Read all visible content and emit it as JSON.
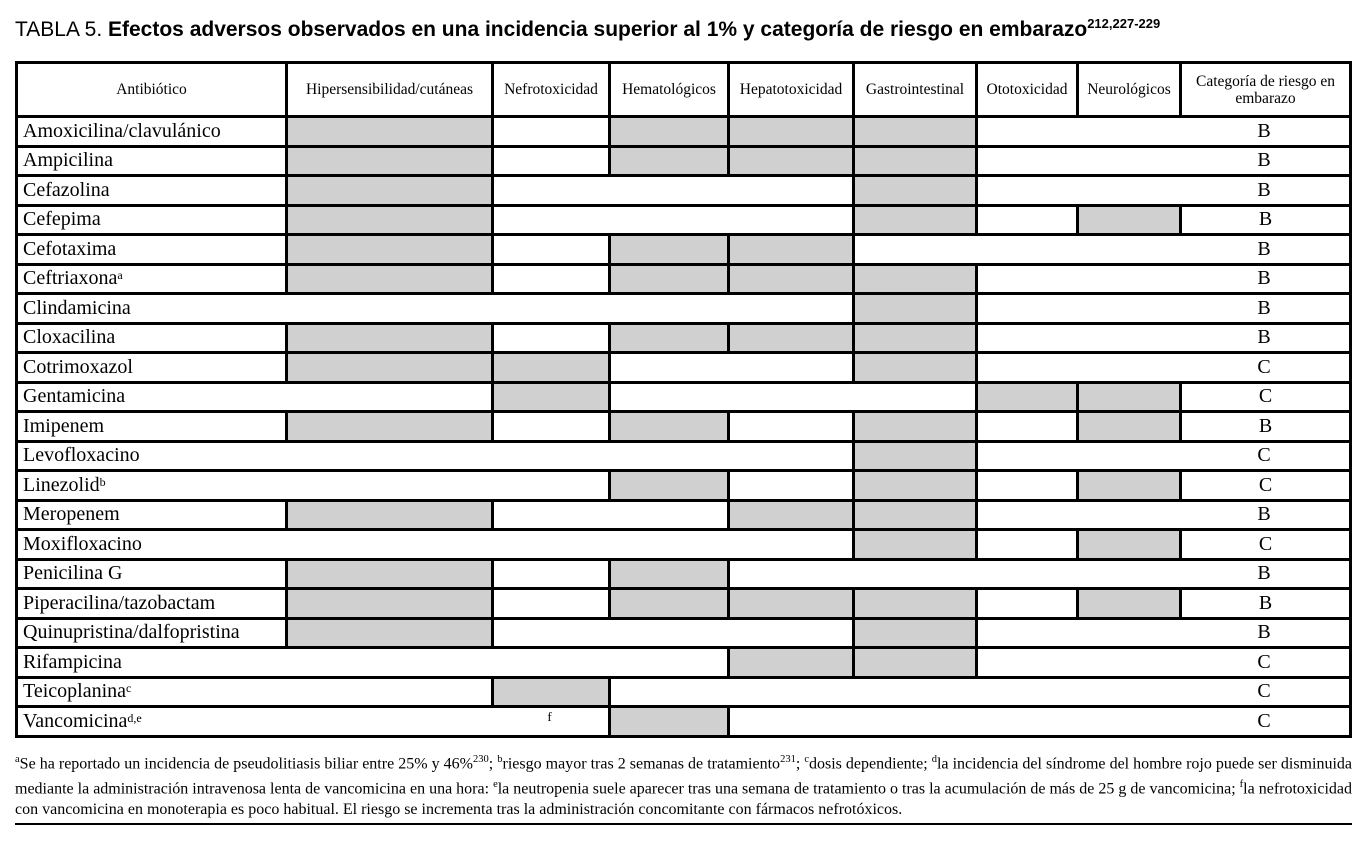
{
  "title": {
    "prefix": "TABLA 5. ",
    "main": "Efectos adversos observados en una incidencia superior al 1% y categoría de riesgo en embarazo",
    "sup": "212,227-229"
  },
  "table": {
    "shade_color": "#d0d0d0",
    "columns": [
      "Antibiótico",
      "Hipersensibilidad/cutáneas",
      "Nefrotoxicidad",
      "Hematológicos",
      "Hepatotoxicidad",
      "Gastrointestinal",
      "Ototoxicidad",
      "Neurológicos",
      "Categoría de riesgo en embarazo"
    ],
    "column_keys": [
      "hipersensibilidad",
      "nefrotoxicidad",
      "hematologicos",
      "hepatotoxicidad",
      "gastrointestinal",
      "ototoxicidad",
      "neurologicos"
    ],
    "rows": [
      {
        "name": "Amoxicilina/clavulánico",
        "sup": "",
        "effects": [
          1,
          0,
          1,
          1,
          1,
          0,
          0
        ],
        "note": null,
        "category": "B"
      },
      {
        "name": "Ampicilina",
        "sup": "",
        "effects": [
          1,
          0,
          1,
          1,
          1,
          0,
          0
        ],
        "note": null,
        "category": "B"
      },
      {
        "name": "Cefazolina",
        "sup": "",
        "effects": [
          1,
          0,
          0,
          0,
          1,
          0,
          0
        ],
        "note": null,
        "category": "B"
      },
      {
        "name": "Cefepima",
        "sup": "",
        "effects": [
          1,
          0,
          0,
          0,
          1,
          0,
          1
        ],
        "note": null,
        "category": "B"
      },
      {
        "name": "Cefotaxima",
        "sup": "",
        "effects": [
          1,
          0,
          1,
          1,
          0,
          0,
          0
        ],
        "note": null,
        "category": "B"
      },
      {
        "name": "Ceftriaxona",
        "sup": "a",
        "effects": [
          1,
          0,
          1,
          1,
          1,
          0,
          0
        ],
        "note": null,
        "category": "B"
      },
      {
        "name": "Clindamicina",
        "sup": "",
        "effects": [
          0,
          0,
          0,
          0,
          1,
          0,
          0
        ],
        "note": null,
        "category": "B"
      },
      {
        "name": "Cloxacilina",
        "sup": "",
        "effects": [
          1,
          0,
          1,
          1,
          1,
          0,
          0
        ],
        "note": null,
        "category": "B"
      },
      {
        "name": "Cotrimoxazol",
        "sup": "",
        "effects": [
          1,
          1,
          0,
          0,
          1,
          0,
          0
        ],
        "note": null,
        "category": "C"
      },
      {
        "name": "Gentamicina",
        "sup": "",
        "effects": [
          0,
          1,
          0,
          0,
          0,
          1,
          1
        ],
        "note": null,
        "category": "C"
      },
      {
        "name": "Imipenem",
        "sup": "",
        "effects": [
          1,
          0,
          1,
          0,
          1,
          0,
          1
        ],
        "note": null,
        "category": "B"
      },
      {
        "name": "Levofloxacino",
        "sup": "",
        "effects": [
          0,
          0,
          0,
          0,
          1,
          0,
          0
        ],
        "note": null,
        "category": "C"
      },
      {
        "name": "Linezolid",
        "sup": "b",
        "effects": [
          0,
          0,
          1,
          0,
          1,
          0,
          1
        ],
        "note": null,
        "category": "C"
      },
      {
        "name": "Meropenem",
        "sup": "",
        "effects": [
          1,
          0,
          0,
          1,
          1,
          0,
          0
        ],
        "note": null,
        "category": "B"
      },
      {
        "name": "Moxifloxacino",
        "sup": "",
        "effects": [
          0,
          0,
          0,
          0,
          1,
          0,
          1
        ],
        "note": null,
        "category": "C"
      },
      {
        "name": "Penicilina G",
        "sup": "",
        "effects": [
          1,
          0,
          1,
          0,
          0,
          0,
          0
        ],
        "note": null,
        "category": "B"
      },
      {
        "name": "Piperacilina/tazobactam",
        "sup": "",
        "effects": [
          1,
          0,
          1,
          1,
          1,
          0,
          1
        ],
        "note": null,
        "category": "B"
      },
      {
        "name": "Quinupristina/dalfopristina",
        "sup": "",
        "effects": [
          1,
          0,
          0,
          0,
          1,
          0,
          0
        ],
        "note": null,
        "category": "B"
      },
      {
        "name": "Rifampicina",
        "sup": "",
        "effects": [
          0,
          0,
          0,
          1,
          1,
          0,
          0
        ],
        "note": null,
        "category": "C"
      },
      {
        "name": "Teicoplanina",
        "sup": "c",
        "effects": [
          0,
          1,
          0,
          0,
          0,
          0,
          0
        ],
        "note": null,
        "category": "C"
      },
      {
        "name": "Vancomicina",
        "sup": "d,e",
        "effects": [
          0,
          0,
          1,
          0,
          0,
          0,
          0
        ],
        "note": {
          "col": 1,
          "label": "f"
        },
        "category": "C"
      }
    ]
  },
  "footnote_segments": [
    {
      "sup": "a"
    },
    {
      "t": "Se ha reportado un incidencia de pseudolitiasis biliar entre 25% y 46%"
    },
    {
      "sup": "230"
    },
    {
      "t": "; "
    },
    {
      "sup": "b"
    },
    {
      "t": "riesgo mayor tras 2 semanas de tratamiento"
    },
    {
      "sup": "231"
    },
    {
      "t": "; "
    },
    {
      "sup": "c"
    },
    {
      "t": "dosis dependiente; "
    },
    {
      "sup": "d"
    },
    {
      "t": "la incidencia del síndrome del hombre rojo puede ser disminuida mediante la administración intravenosa lenta de vancomicina en una hora: "
    },
    {
      "sup": "e"
    },
    {
      "t": "la neutropenia suele aparecer tras una semana de tratamiento o tras la acumulación de más de 25 g de vancomicina; "
    },
    {
      "sup": "f"
    },
    {
      "t": "la nefrotoxicidad con vancomicina en monoterapia es poco habitual. El riesgo se incrementa tras la administración concomitante con fármacos nefrotóxicos."
    }
  ]
}
